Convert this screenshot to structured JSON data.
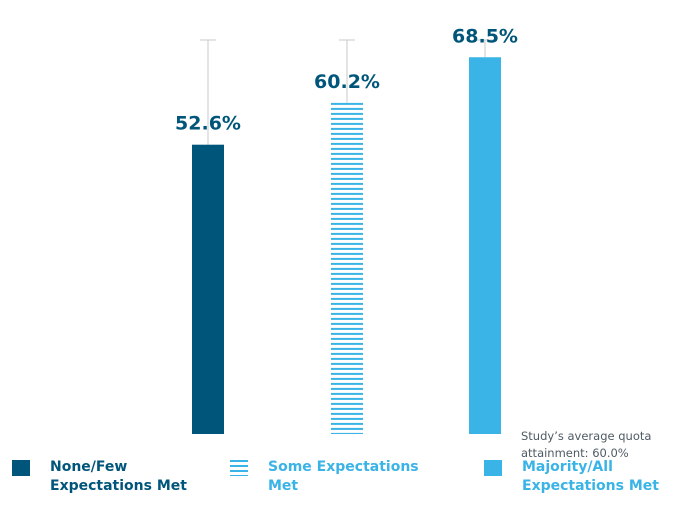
{
  "chart_data": {
    "type": "bar",
    "categories": [
      "None/Few Expectations Met",
      "Some Expectations Met",
      "Majority/All Expectations Met"
    ],
    "values": [
      52.6,
      60.2,
      68.5
    ],
    "value_labels": [
      "52.6%",
      "60.2%",
      "68.5%"
    ],
    "ylim": [
      0,
      72
    ],
    "title": "",
    "xlabel": "",
    "ylabel": "",
    "grid": false,
    "legend_position": "bottom",
    "reference_note": "Study’s average quota attainment: 60.0%",
    "colors": {
      "dark": "#00567a",
      "light": "#3ab3e6",
      "error_line": "#c8c8c8",
      "note_text": "#4f5b63"
    },
    "bar_styles": [
      "solid-dark",
      "striped-light",
      "solid-light"
    ],
    "legend": [
      {
        "label": "None/Few Expectations Met",
        "style": "solid-dark",
        "color": "#00567a"
      },
      {
        "label": "Some Expectations Met",
        "style": "striped-light",
        "color": "#3ab3e6"
      },
      {
        "label": "Majority/All Expectations Met",
        "style": "solid-light",
        "color": "#3ab3e6"
      }
    ]
  }
}
